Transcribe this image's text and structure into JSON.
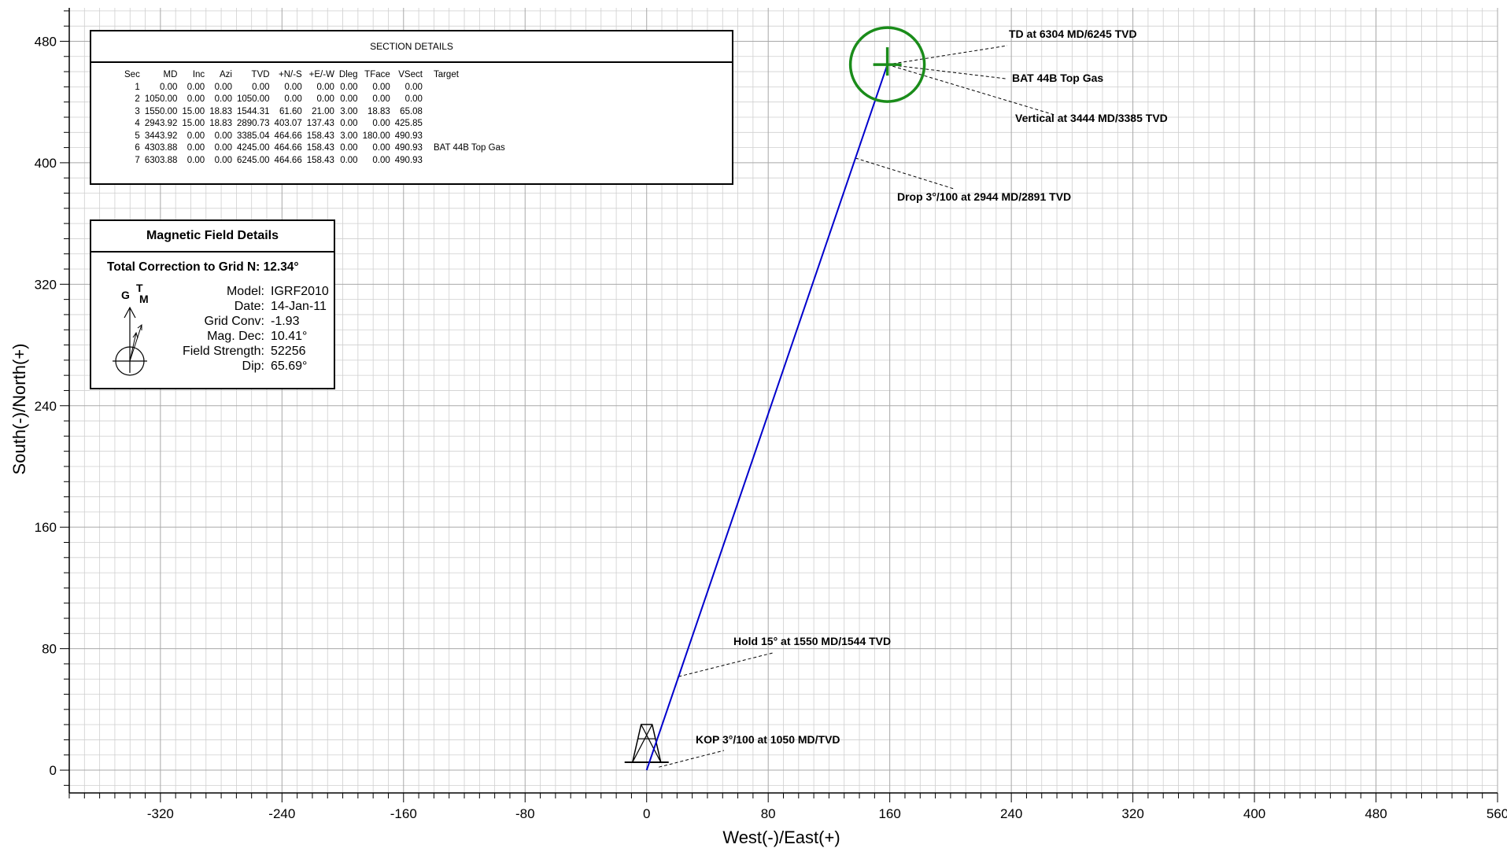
{
  "chart_data": {
    "type": "line",
    "xlabel": "West(-)/East(+)",
    "ylabel": "South(-)/North(+)",
    "xlim": [
      -380,
      560
    ],
    "ylim": [
      -15,
      502
    ],
    "x_ticks": [
      -320,
      -240,
      -160,
      -80,
      0,
      80,
      160,
      240,
      320,
      400,
      480,
      560
    ],
    "y_ticks": [
      0,
      80,
      160,
      240,
      320,
      400,
      480
    ],
    "grid": true,
    "series": [
      {
        "color": "#0000cc",
        "points": [
          {
            "x": 0,
            "y": 0
          },
          {
            "x": 21,
            "y": 61.6
          },
          {
            "x": 137.43,
            "y": 403.07
          },
          {
            "x": 158.43,
            "y": 464.66
          }
        ]
      }
    ],
    "target": {
      "name": "BAT 44B Top Gas",
      "x": 158.43,
      "y": 464.66,
      "color": "#1a8c1a"
    },
    "annotations": [
      {
        "text": "TD at 6304 MD/6245 TVD",
        "x": 158.43,
        "y": 464.66
      },
      {
        "text": "BAT 44B Top Gas",
        "x": 158.43,
        "y": 464.66
      },
      {
        "text": "Vertical at 3444 MD/3385 TVD",
        "x": 158.43,
        "y": 464.66
      },
      {
        "text": "Drop 3°/100 at 2944 MD/2891 TVD",
        "x": 137.43,
        "y": 403.07
      },
      {
        "text": "Hold 15° at 1550 MD/1544 TVD",
        "x": 21,
        "y": 61.6
      },
      {
        "text": "KOP 3°/100 at 1050 MD/TVD",
        "x": 8,
        "y": 2
      }
    ]
  },
  "section_details": {
    "title": "SECTION DETAILS",
    "columns": [
      "Sec",
      "MD",
      "Inc",
      "Azi",
      "TVD",
      "+N/-S",
      "+E/-W",
      "Dleg",
      "TFace",
      "VSect",
      "Target"
    ],
    "rows": [
      [
        "1",
        "0.00",
        "0.00",
        "0.00",
        "0.00",
        "0.00",
        "0.00",
        "0.00",
        "0.00",
        "0.00",
        ""
      ],
      [
        "2",
        "1050.00",
        "0.00",
        "0.00",
        "1050.00",
        "0.00",
        "0.00",
        "0.00",
        "0.00",
        "0.00",
        ""
      ],
      [
        "3",
        "1550.00",
        "15.00",
        "18.83",
        "1544.31",
        "61.60",
        "21.00",
        "3.00",
        "18.83",
        "65.08",
        ""
      ],
      [
        "4",
        "2943.92",
        "15.00",
        "18.83",
        "2890.73",
        "403.07",
        "137.43",
        "0.00",
        "0.00",
        "425.85",
        ""
      ],
      [
        "5",
        "3443.92",
        "0.00",
        "0.00",
        "3385.04",
        "464.66",
        "158.43",
        "3.00",
        "180.00",
        "490.93",
        ""
      ],
      [
        "6",
        "4303.88",
        "0.00",
        "0.00",
        "4245.00",
        "464.66",
        "158.43",
        "0.00",
        "0.00",
        "490.93",
        "BAT 44B Top Gas"
      ],
      [
        "7",
        "6303.88",
        "0.00",
        "0.00",
        "6245.00",
        "464.66",
        "158.43",
        "0.00",
        "0.00",
        "490.93",
        ""
      ]
    ]
  },
  "magnetic_field": {
    "title": "Magnetic Field Details",
    "total_correction_label": "Total Correction to Grid N:",
    "total_correction_value": "12.34°",
    "compass_labels": {
      "grid": "G",
      "true": "T",
      "magnetic": "M"
    },
    "rows": [
      {
        "label": "Model:",
        "value": "IGRF2010"
      },
      {
        "label": "Date:",
        "value": "14-Jan-11"
      },
      {
        "label": "Grid Conv:",
        "value": "-1.93"
      },
      {
        "label": "Mag. Dec:",
        "value": "10.41°"
      },
      {
        "label": "Field Strength:",
        "value": "52256"
      },
      {
        "label": "Dip:",
        "value": "65.69°"
      }
    ]
  }
}
